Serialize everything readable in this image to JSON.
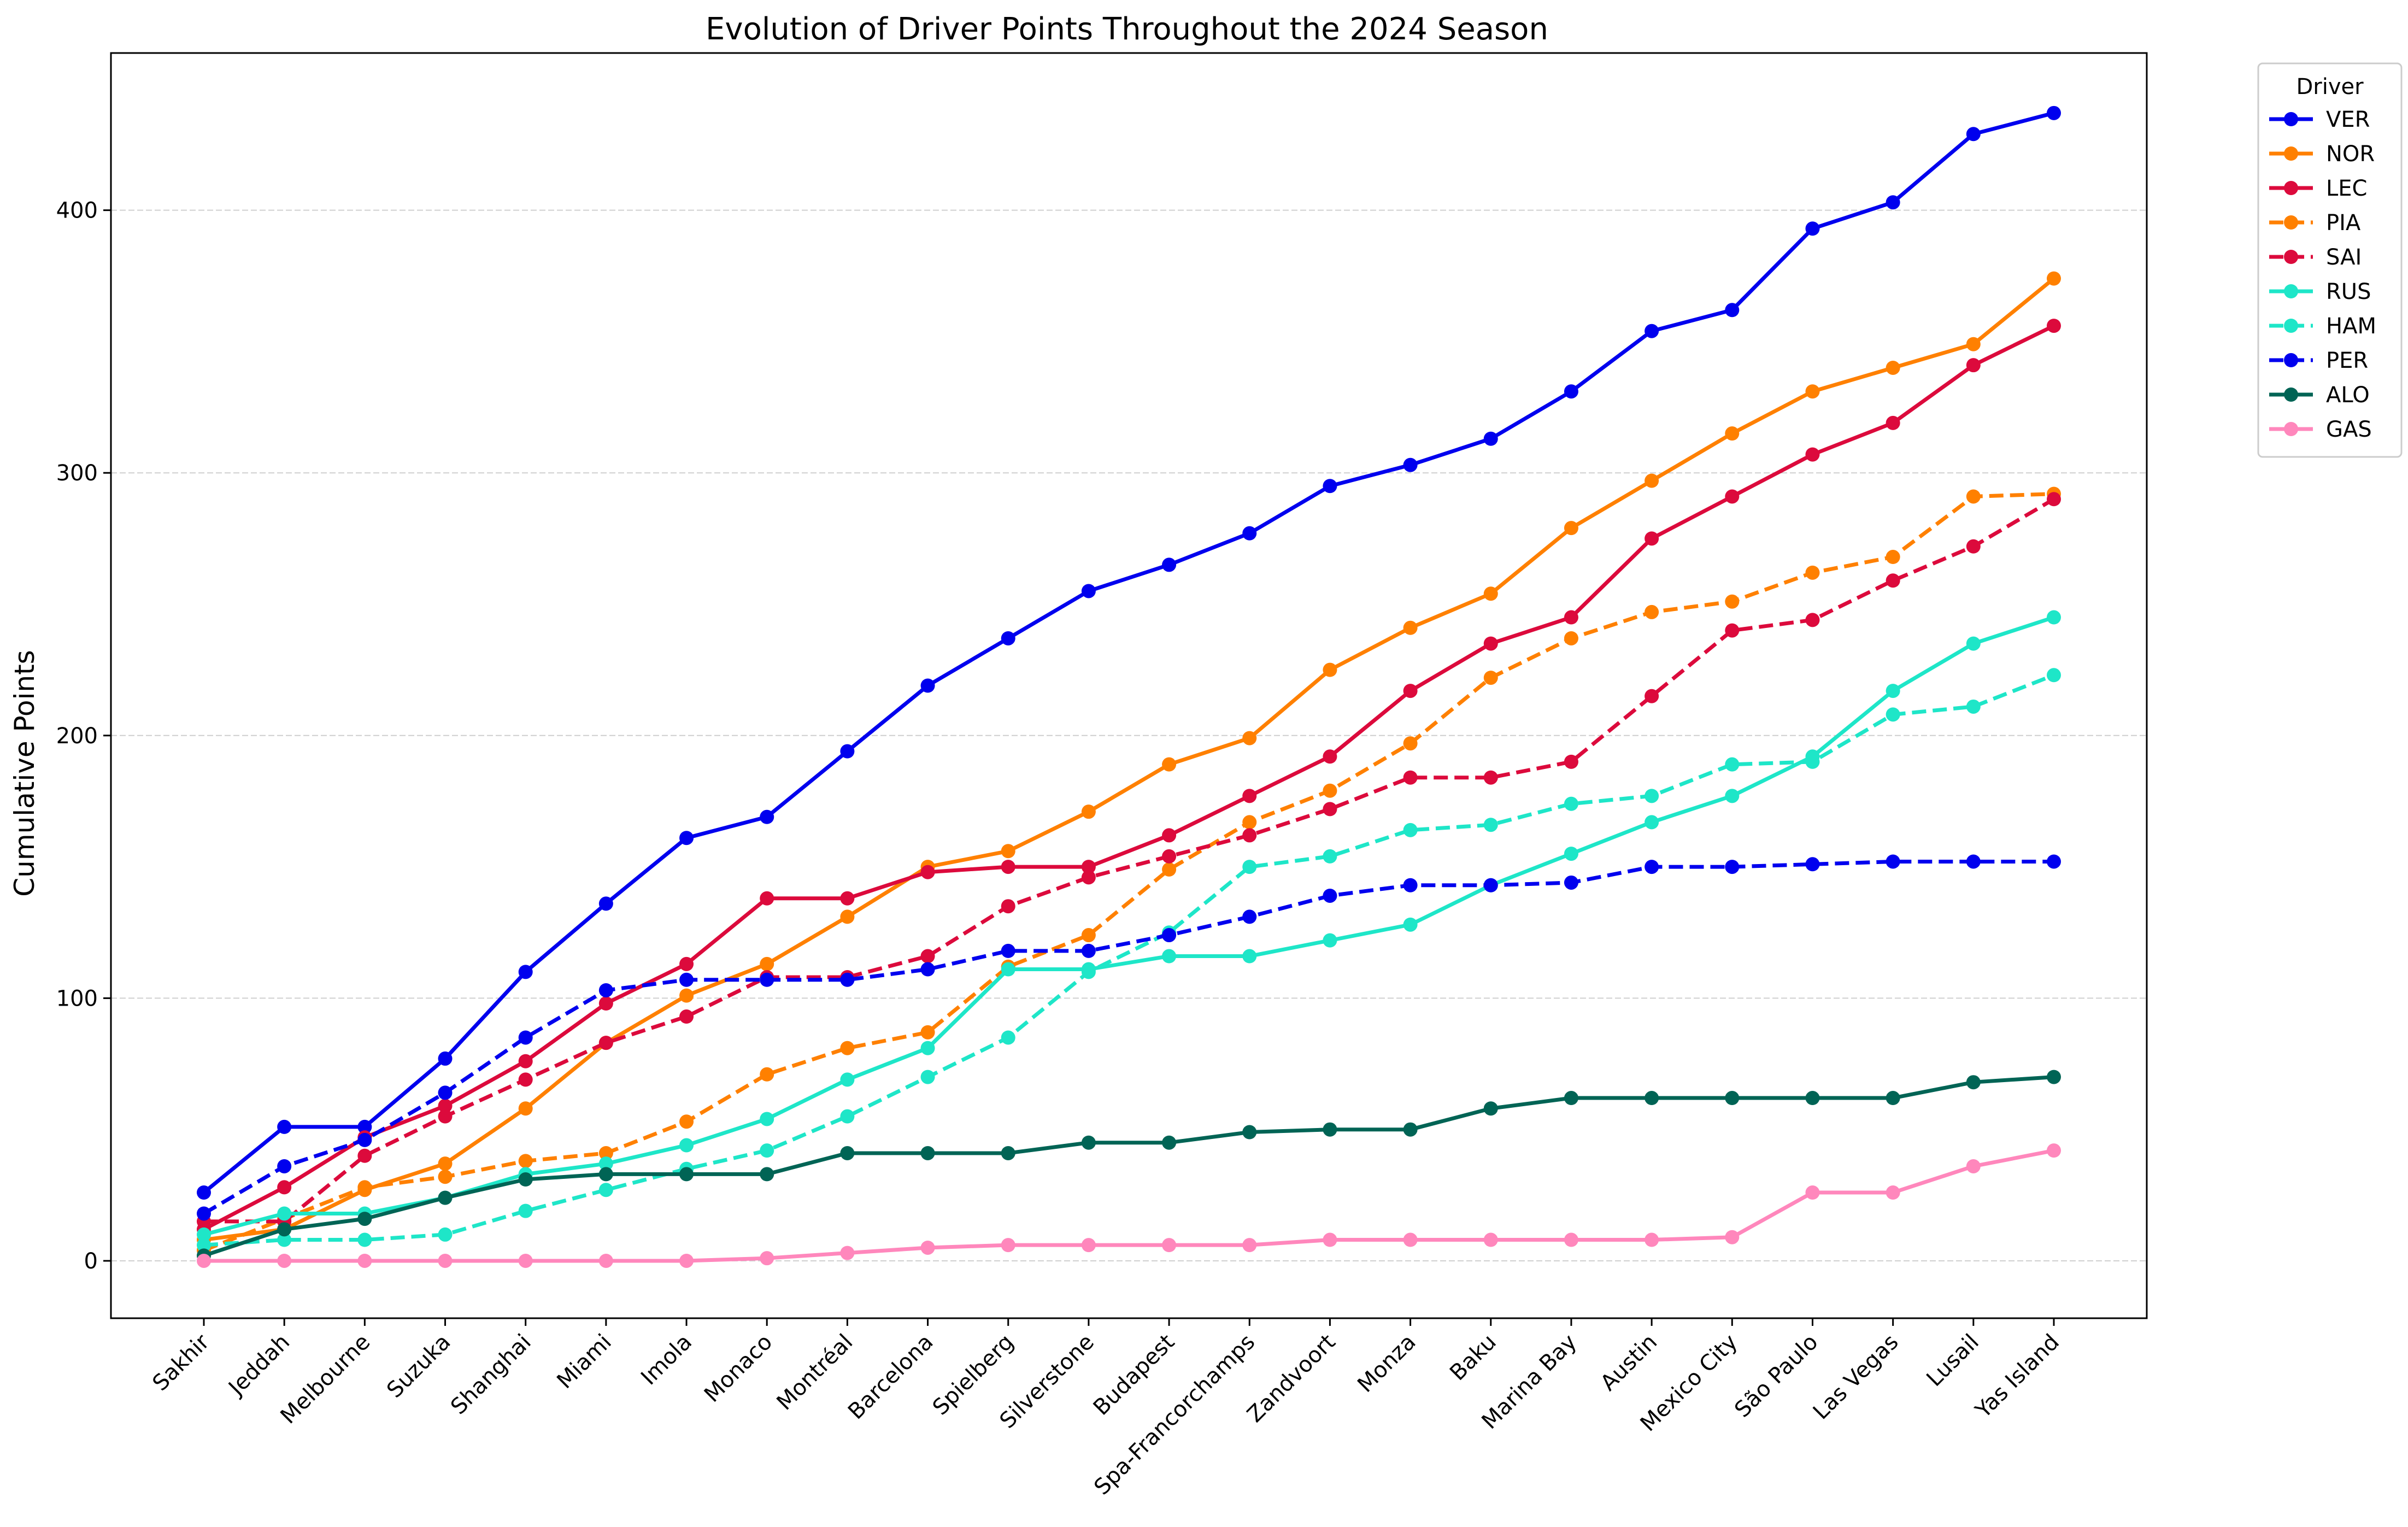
{
  "chart_data": {
    "type": "line",
    "title": "Evolution of Driver Points Throughout the 2024 Season",
    "xlabel": "",
    "ylabel": "Cumulative Points",
    "ylim": [
      -21.85,
      459.85
    ],
    "yticks": [
      0,
      100,
      200,
      300,
      400
    ],
    "grid": "horizontal dashed",
    "legend": {
      "title": "Driver",
      "position": "outside top-right"
    },
    "categories": [
      "Sakhir",
      "Jeddah",
      "Melbourne",
      "Suzuka",
      "Shanghai",
      "Miami",
      "Imola",
      "Monaco",
      "Montréal",
      "Barcelona",
      "Spielberg",
      "Silverstone",
      "Budapest",
      "Spa-Francorchamps",
      "Zandvoort",
      "Monza",
      "Baku",
      "Marina Bay",
      "Austin",
      "Mexico City",
      "São Paulo",
      "Las Vegas",
      "Lusail",
      "Yas Island"
    ],
    "series": [
      {
        "name": "VER",
        "color": "#0000ee",
        "style": "solid",
        "values": [
          26,
          51,
          51,
          77,
          110,
          136,
          161,
          169,
          194,
          219,
          237,
          255,
          265,
          277,
          295,
          303,
          313,
          331,
          354,
          362,
          393,
          403,
          429,
          437
        ]
      },
      {
        "name": "NOR",
        "color": "#ff8000",
        "style": "solid",
        "values": [
          8,
          12,
          27,
          37,
          58,
          83,
          101,
          113,
          131,
          150,
          156,
          171,
          189,
          199,
          225,
          241,
          254,
          279,
          297,
          315,
          331,
          340,
          349,
          374
        ]
      },
      {
        "name": "LEC",
        "color": "#dc0a3c",
        "style": "solid",
        "values": [
          12,
          28,
          47,
          59,
          76,
          98,
          113,
          138,
          138,
          148,
          150,
          150,
          162,
          177,
          192,
          217,
          235,
          245,
          275,
          291,
          307,
          319,
          341,
          356
        ]
      },
      {
        "name": "PIA",
        "color": "#ff8000",
        "style": "dashed",
        "values": [
          4,
          16,
          28,
          32,
          38,
          41,
          53,
          71,
          81,
          87,
          112,
          124,
          149,
          167,
          179,
          197,
          222,
          237,
          247,
          251,
          262,
          268,
          291,
          292
        ]
      },
      {
        "name": "SAI",
        "color": "#dc0a3c",
        "style": "dashed",
        "values": [
          15,
          15,
          40,
          55,
          69,
          83,
          93,
          108,
          108,
          116,
          135,
          146,
          154,
          162,
          172,
          184,
          184,
          190,
          215,
          240,
          244,
          259,
          272,
          290
        ]
      },
      {
        "name": "RUS",
        "color": "#1ee6c8",
        "style": "solid",
        "values": [
          10,
          18,
          18,
          24,
          33,
          37,
          44,
          54,
          69,
          81,
          111,
          111,
          116,
          116,
          122,
          128,
          143,
          155,
          167,
          177,
          192,
          217,
          235,
          245
        ]
      },
      {
        "name": "HAM",
        "color": "#1ee6c8",
        "style": "dashed",
        "values": [
          6,
          8,
          8,
          10,
          19,
          27,
          35,
          42,
          55,
          70,
          85,
          110,
          125,
          150,
          154,
          164,
          166,
          174,
          177,
          189,
          190,
          208,
          211,
          223
        ]
      },
      {
        "name": "PER",
        "color": "#0000ee",
        "style": "dashed",
        "values": [
          18,
          36,
          46,
          64,
          85,
          103,
          107,
          107,
          107,
          111,
          118,
          118,
          124,
          131,
          139,
          143,
          143,
          144,
          150,
          150,
          151,
          152,
          152,
          152
        ]
      },
      {
        "name": "ALO",
        "color": "#006455",
        "style": "solid",
        "values": [
          2,
          12,
          16,
          24,
          31,
          33,
          33,
          33,
          41,
          41,
          41,
          45,
          45,
          49,
          50,
          50,
          58,
          62,
          62,
          62,
          62,
          62,
          68,
          70
        ]
      },
      {
        "name": "GAS",
        "color": "#ff87bc",
        "style": "solid",
        "values": [
          0,
          0,
          0,
          0,
          0,
          0,
          0,
          1,
          3,
          5,
          6,
          6,
          6,
          6,
          8,
          8,
          8,
          8,
          8,
          9,
          26,
          26,
          36,
          42
        ]
      }
    ]
  }
}
